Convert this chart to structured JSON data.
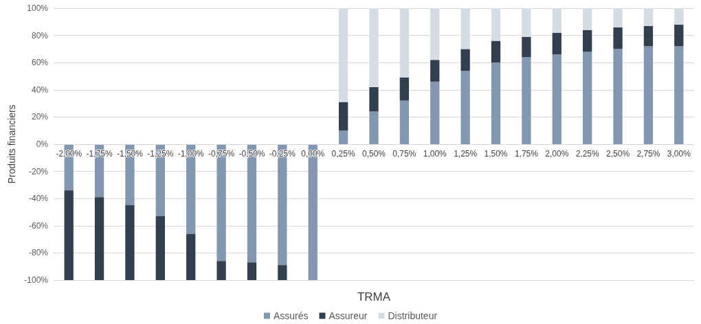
{
  "chart_data": {
    "type": "bar",
    "stacked": true,
    "xlabel": "TRMA",
    "ylabel": "Produits financiers",
    "categories": [
      "-2,00%",
      "-1,75%",
      "-1,50%",
      "-1,25%",
      "-1,00%",
      "-0,75%",
      "-0,50%",
      "-0,25%",
      "0,00%",
      "0,25%",
      "0,50%",
      "0,75%",
      "1,00%",
      "1,25%",
      "1,50%",
      "1,75%",
      "2,00%",
      "2,25%",
      "2,50%",
      "2,75%",
      "3,00%"
    ],
    "series": [
      {
        "name": "Assurés",
        "color": "#8497b0",
        "values": [
          -34,
          -39,
          -45,
          -53,
          -66,
          -86,
          -87,
          -89,
          -100,
          10,
          24,
          32,
          46,
          54,
          60,
          64,
          66,
          68,
          70,
          72,
          72
        ]
      },
      {
        "name": "Assureur",
        "color": "#323f4f",
        "values": [
          -66,
          -61,
          -55,
          -47,
          -34,
          -14,
          -13,
          -11,
          0,
          21,
          18,
          17,
          16,
          16,
          16,
          15,
          16,
          16,
          16,
          15,
          16
        ]
      },
      {
        "name": "Distributeur",
        "color": "#d6dce4",
        "values": [
          0,
          0,
          0,
          0,
          0,
          0,
          0,
          0,
          0,
          69,
          58,
          51,
          38,
          30,
          24,
          21,
          18,
          16,
          14,
          13,
          12
        ]
      }
    ],
    "ylim": [
      -100,
      100
    ],
    "yticks": [
      {
        "value": -100,
        "label": "-100%"
      },
      {
        "value": -80,
        "label": "-80%"
      },
      {
        "value": -60,
        "label": "-60%"
      },
      {
        "value": -40,
        "label": "-40%"
      },
      {
        "value": -20,
        "label": "-20%"
      },
      {
        "value": 0,
        "label": "0%"
      },
      {
        "value": 20,
        "label": "20%"
      },
      {
        "value": 40,
        "label": "40%"
      },
      {
        "value": 60,
        "label": "60%"
      },
      {
        "value": 80,
        "label": "80%"
      },
      {
        "value": 100,
        "label": "100%"
      }
    ],
    "grid": "y",
    "legend": "bottom"
  }
}
